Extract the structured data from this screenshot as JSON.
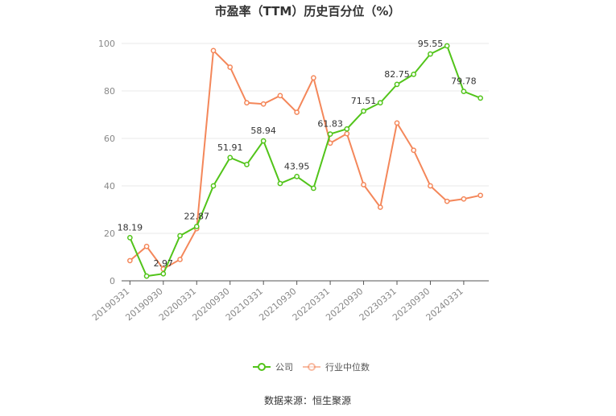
{
  "chart_data": {
    "type": "line",
    "title": "市盈率（TTM）历史百分位（%）",
    "source": "数据来源：恒生聚源",
    "ylim": [
      0,
      100
    ],
    "y_ticks": [
      0,
      20,
      40,
      60,
      80,
      100
    ],
    "grid": true,
    "legend_position": "bottom",
    "x_tick_labels": [
      "20190331",
      "20190930",
      "20200331",
      "20200930",
      "20210331",
      "20210930",
      "20220331",
      "20220930",
      "20230331",
      "20230930",
      "20240331"
    ],
    "series": [
      {
        "name": "公司",
        "color": "#52c41a",
        "values": [
          18.19,
          2,
          2.97,
          19,
          22.87,
          40,
          51.91,
          49,
          58.94,
          41,
          43.95,
          39,
          61.83,
          64,
          71.51,
          75,
          82.75,
          87,
          95.55,
          99,
          79.78,
          77
        ]
      },
      {
        "name": "行业中位数",
        "color": "#f4875a",
        "values": [
          8.5,
          14.5,
          5,
          9,
          22,
          97,
          90,
          75,
          74.5,
          78,
          71,
          85.5,
          58,
          62,
          40.5,
          31,
          66.5,
          55,
          40,
          33.5,
          34.5,
          36
        ]
      }
    ],
    "data_labels": [
      {
        "index": 0,
        "text": "18.19"
      },
      {
        "index": 2,
        "text": "2.97"
      },
      {
        "index": 4,
        "text": "22.87"
      },
      {
        "index": 6,
        "text": "51.91"
      },
      {
        "index": 8,
        "text": "58.94"
      },
      {
        "index": 10,
        "text": "43.95"
      },
      {
        "index": 12,
        "text": "61.83"
      },
      {
        "index": 14,
        "text": "71.51"
      },
      {
        "index": 16,
        "text": "82.75"
      },
      {
        "index": 18,
        "text": "95.55"
      },
      {
        "index": 20,
        "text": "79.78"
      }
    ]
  }
}
